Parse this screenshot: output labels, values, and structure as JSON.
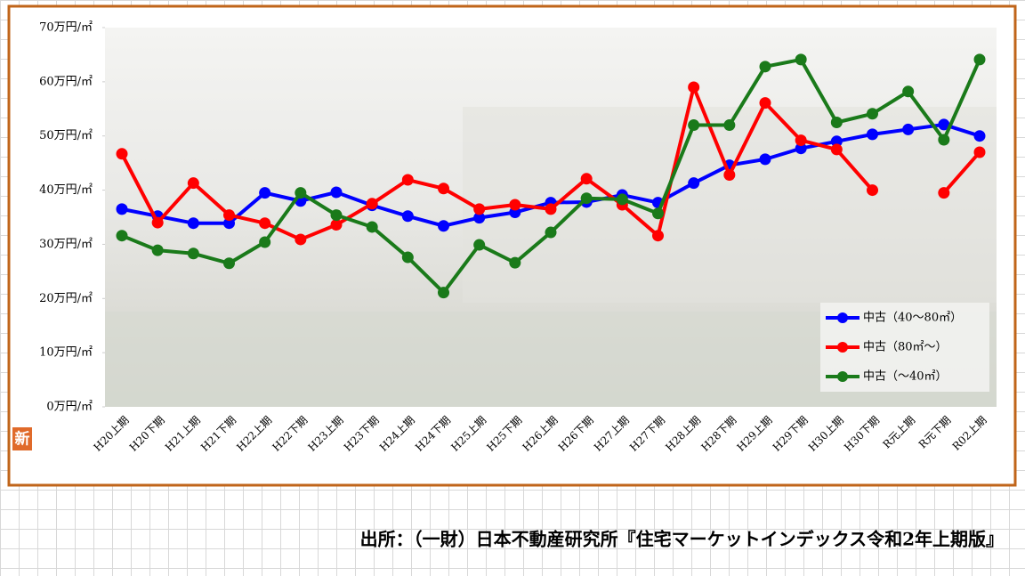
{
  "chart_data": {
    "type": "line",
    "categories": [
      "H20上期",
      "H20下期",
      "H21上期",
      "H21下期",
      "H22上期",
      "H22下期",
      "H23上期",
      "H23下期",
      "H24上期",
      "H24下期",
      "H25上期",
      "H25下期",
      "H26上期",
      "H26下期",
      "H27上期",
      "H27下期",
      "H28上期",
      "H28下期",
      "H29上期",
      "H29下期",
      "H30上期",
      "H30下期",
      "R元上期",
      "R元下期",
      "R02上期"
    ],
    "series": [
      {
        "name": "中古（40～80㎡）",
        "color": "#0000ff",
        "values": [
          36.5,
          35.2,
          33.9,
          33.9,
          39.5,
          38.0,
          39.6,
          37.2,
          35.2,
          33.4,
          34.9,
          35.9,
          37.7,
          37.8,
          39.1,
          37.7,
          41.3,
          44.6,
          45.7,
          47.7,
          49.0,
          50.3,
          51.2,
          52.1,
          50.0
        ]
      },
      {
        "name": "中古（80㎡～）",
        "color": "#ff0000",
        "values": [
          46.7,
          34.0,
          41.3,
          35.4,
          33.9,
          30.9,
          33.6,
          37.5,
          41.9,
          40.3,
          36.5,
          37.3,
          36.5,
          42.1,
          37.3,
          31.6,
          59.0,
          42.8,
          56.1,
          49.2,
          47.5,
          40.0,
          null,
          39.5,
          47.0
        ]
      },
      {
        "name": "中古（～40㎡）",
        "color": "#1a7a1a",
        "values": [
          31.6,
          28.9,
          28.3,
          26.5,
          30.4,
          39.5,
          35.4,
          33.2,
          27.6,
          21.1,
          29.9,
          26.6,
          32.2,
          38.5,
          38.3,
          35.7,
          52.0,
          52.0,
          62.8,
          64.1,
          52.5,
          54.1,
          58.2,
          49.3,
          64.1
        ]
      }
    ],
    "ylim": [
      0,
      70
    ],
    "yticks": [
      {
        "value": 0,
        "label": "0万円/㎡"
      },
      {
        "value": 10,
        "label": "10万円/㎡"
      },
      {
        "value": 20,
        "label": "20万円/㎡"
      },
      {
        "value": 30,
        "label": "30万円/㎡"
      },
      {
        "value": 40,
        "label": "40万円/㎡"
      },
      {
        "value": 50,
        "label": "50万円/㎡"
      },
      {
        "value": 60,
        "label": "60万円/㎡"
      },
      {
        "value": 70,
        "label": "70万円/㎡"
      }
    ],
    "grid": false,
    "legend": "lower right",
    "source": "出所：（一財）日本不動産研究所『住宅マーケットインデックス令和2年上期版』"
  },
  "badge": "新"
}
